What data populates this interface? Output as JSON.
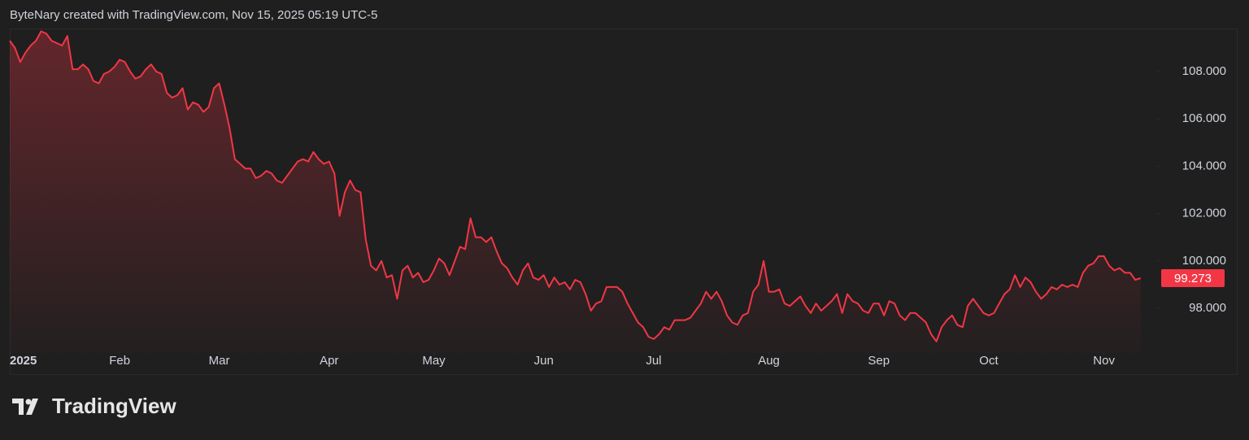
{
  "attribution": "ByteNary created with TradingView.com, Nov 15, 2025 05:19 UTC-5",
  "logo": "TradingView",
  "chart_data": {
    "type": "line",
    "color": "#f23645",
    "values": [
      109.3,
      109.0,
      108.4,
      108.8,
      109.1,
      109.3,
      109.7,
      109.6,
      109.3,
      109.2,
      109.1,
      109.5,
      108.1,
      108.1,
      108.3,
      108.1,
      107.6,
      107.5,
      107.9,
      108.0,
      108.2,
      108.5,
      108.4,
      108.0,
      107.7,
      107.8,
      108.1,
      108.3,
      108.0,
      107.9,
      107.1,
      106.9,
      107.0,
      107.3,
      106.4,
      106.7,
      106.6,
      106.3,
      106.5,
      107.3,
      107.5,
      106.6,
      105.6,
      104.3,
      104.1,
      103.9,
      103.9,
      103.5,
      103.6,
      103.8,
      103.7,
      103.4,
      103.3,
      103.6,
      103.9,
      104.2,
      104.3,
      104.2,
      104.6,
      104.3,
      104.1,
      104.2,
      103.7,
      101.9,
      102.9,
      103.4,
      103.0,
      102.9,
      100.9,
      99.8,
      99.6,
      100.0,
      99.3,
      99.4,
      98.4,
      99.6,
      99.8,
      99.3,
      99.5,
      99.1,
      99.2,
      99.6,
      100.1,
      99.9,
      99.4,
      100.0,
      100.6,
      100.5,
      101.8,
      101.0,
      101.0,
      100.8,
      101.0,
      100.4,
      99.9,
      99.7,
      99.3,
      99.0,
      99.6,
      99.9,
      99.3,
      99.2,
      99.4,
      98.9,
      99.3,
      99.0,
      99.1,
      98.8,
      99.2,
      99.1,
      98.6,
      97.9,
      98.2,
      98.3,
      98.9,
      98.9,
      98.9,
      98.7,
      98.2,
      97.8,
      97.4,
      97.2,
      96.8,
      96.7,
      96.9,
      97.2,
      97.1,
      97.5,
      97.5,
      97.5,
      97.6,
      97.9,
      98.2,
      98.7,
      98.4,
      98.7,
      98.3,
      97.7,
      97.4,
      97.3,
      97.7,
      97.8,
      98.7,
      99.0,
      100.0,
      98.7,
      98.7,
      98.8,
      98.2,
      98.1,
      98.3,
      98.5,
      98.1,
      97.8,
      98.2,
      97.9,
      98.1,
      98.3,
      98.6,
      97.8,
      98.6,
      98.3,
      98.2,
      97.9,
      97.8,
      98.2,
      98.2,
      97.7,
      98.3,
      98.2,
      97.7,
      97.5,
      97.8,
      97.8,
      97.6,
      97.4,
      96.9,
      96.6,
      97.2,
      97.5,
      97.7,
      97.3,
      97.2,
      98.1,
      98.4,
      98.1,
      97.8,
      97.7,
      97.8,
      98.2,
      98.6,
      98.8,
      99.4,
      98.9,
      99.3,
      99.1,
      98.7,
      98.4,
      98.6,
      98.9,
      98.8,
      99.0,
      98.9,
      99.0,
      98.9,
      99.5,
      99.8,
      99.9,
      100.2,
      100.2,
      99.8,
      99.6,
      99.7,
      99.5,
      99.5,
      99.2,
      99.273
    ],
    "xlim": [
      0,
      219
    ],
    "xticks": [
      {
        "value": 0,
        "label": "2025"
      },
      {
        "value": 21,
        "label": "Feb"
      },
      {
        "value": 40,
        "label": "Mar"
      },
      {
        "value": 61,
        "label": "Apr"
      },
      {
        "value": 81,
        "label": "May"
      },
      {
        "value": 102,
        "label": "Jun"
      },
      {
        "value": 123,
        "label": "Jul"
      },
      {
        "value": 145,
        "label": "Aug"
      },
      {
        "value": 166,
        "label": "Sep"
      },
      {
        "value": 187,
        "label": "Oct"
      },
      {
        "value": 209,
        "label": "Nov"
      }
    ],
    "ylim": [
      96.25,
      109.82
    ],
    "yticks": [
      {
        "value": 98,
        "label": "98.000"
      },
      {
        "value": 100,
        "label": "100.000"
      },
      {
        "value": 102,
        "label": "102.000"
      },
      {
        "value": 104,
        "label": "104.000"
      },
      {
        "value": 106,
        "label": "106.000"
      },
      {
        "value": 108,
        "label": "108.000"
      }
    ]
  }
}
